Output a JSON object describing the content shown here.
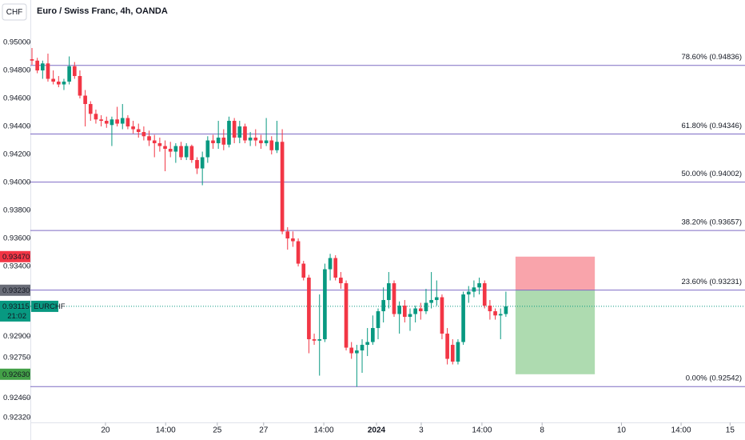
{
  "chart_data": {
    "type": "candlestick",
    "symbol_box": "CHF",
    "title": "Euro / Swiss Franc, 4h, OANDA",
    "up_color": "#089981",
    "down_color": "#f23645",
    "ylim": [
      0.92286,
      0.95303
    ],
    "xlim": [
      -0.3,
      133.9
    ],
    "grid": false,
    "yticks": [
      {
        "value": 0.95,
        "label": "0.95000"
      },
      {
        "value": 0.948,
        "label": "0.94800"
      },
      {
        "value": 0.946,
        "label": "0.94600"
      },
      {
        "value": 0.944,
        "label": "0.94400"
      },
      {
        "value": 0.942,
        "label": "0.94200"
      },
      {
        "value": 0.94,
        "label": "0.94000"
      },
      {
        "value": 0.938,
        "label": "0.93800"
      },
      {
        "value": 0.936,
        "label": "0.93600"
      },
      {
        "value": 0.934,
        "label": "0.93400"
      },
      {
        "value": 0.929,
        "label": "0.92900"
      },
      {
        "value": 0.9275,
        "label": "0.92750"
      },
      {
        "value": 0.9246,
        "label": "0.92460"
      },
      {
        "value": 0.9232,
        "label": "0.92320"
      }
    ],
    "xticks": [
      {
        "value": 13.8,
        "label": "20"
      },
      {
        "value": 25.1,
        "label": "14:00"
      },
      {
        "value": 34.8,
        "label": "25"
      },
      {
        "value": 43.5,
        "label": "27"
      },
      {
        "value": 54.8,
        "label": "14:00"
      },
      {
        "value": 64.7,
        "label": "2024",
        "bold": true
      },
      {
        "value": 73.1,
        "label": "3"
      },
      {
        "value": 84.5,
        "label": "14:00"
      },
      {
        "value": 95.8,
        "label": "8"
      },
      {
        "value": 110.7,
        "label": "10"
      },
      {
        "value": 121.9,
        "label": "14:00"
      },
      {
        "value": 131.1,
        "label": "15"
      }
    ],
    "fib_color": "#7e6bc4",
    "fib_levels": [
      {
        "value": 0.94836,
        "label": "78.60% (0.94836)"
      },
      {
        "value": 0.94346,
        "label": "61.80% (0.94346)"
      },
      {
        "value": 0.94002,
        "label": "50.00% (0.94002)"
      },
      {
        "value": 0.93657,
        "label": "38.20% (0.93657)"
      },
      {
        "value": 0.93231,
        "label": "23.60% (0.93231)"
      },
      {
        "value": 0.92542,
        "label": "0.00% (0.92542)"
      }
    ],
    "position": {
      "x": [
        90.8,
        105.7
      ],
      "stop": 0.9347,
      "entry": 0.9323,
      "target": 0.9263
    },
    "price_labels": [
      {
        "value": 0.9347,
        "label": "0.93470",
        "color": "#f23645"
      },
      {
        "value": 0.9323,
        "label": "0.93230",
        "color": "#6a6d78"
      },
      {
        "value": 0.9263,
        "label": "0.92630",
        "color": "#43a047"
      }
    ],
    "last_price": {
      "value": 0.93115,
      "label": "0.93115",
      "symbol": "EURCHF",
      "countdown": "21:02",
      "color": "#089981"
    },
    "open": [
      0.9488,
      0.9487,
      0.948,
      0.9485,
      0.9474,
      0.9472,
      0.947,
      0.9472,
      0.9483,
      0.9476,
      0.9462,
      0.9456,
      0.9449,
      0.9445,
      0.9444,
      0.9441,
      0.9445,
      0.9442,
      0.9446,
      0.944,
      0.9438,
      0.9436,
      0.9433,
      0.943,
      0.9428,
      0.9426,
      0.9424,
      0.9422,
      0.9426,
      0.9418,
      0.9426,
      0.9416,
      0.941,
      0.9418,
      0.943,
      0.9428,
      0.9432,
      0.9427,
      0.9444,
      0.9432,
      0.944,
      0.943,
      0.9432,
      0.943,
      0.9428,
      0.943,
      0.9423,
      0.9429,
      0.9365,
      0.936,
      0.9358,
      0.9342,
      0.9332,
      0.9288,
      0.9287,
      0.9288,
      0.9338,
      0.9346,
      0.9332,
      0.9328,
      0.9282,
      0.9278,
      0.928,
      0.9284,
      0.9286,
      0.9296,
      0.9308,
      0.9316,
      0.9328,
      0.9306,
      0.9312,
      0.9304,
      0.9306,
      0.931,
      0.9308,
      0.9314,
      0.9316,
      0.9318,
      0.9292,
      0.9284,
      0.9272,
      0.9286,
      0.932,
      0.9322,
      0.9325,
      0.9328,
      0.9312,
      0.9308,
      0.9305,
      0.9306
    ],
    "high": [
      0.9496,
      0.9489,
      0.9487,
      0.9492,
      0.948,
      0.9476,
      0.9474,
      0.949,
      0.9486,
      0.948,
      0.9466,
      0.9458,
      0.9452,
      0.9448,
      0.9447,
      0.9447,
      0.9454,
      0.9456,
      0.9448,
      0.9444,
      0.9442,
      0.944,
      0.9437,
      0.9434,
      0.9432,
      0.943,
      0.9429,
      0.9428,
      0.9429,
      0.9428,
      0.9427,
      0.9418,
      0.9422,
      0.9433,
      0.9434,
      0.9444,
      0.9438,
      0.9447,
      0.9446,
      0.9444,
      0.9442,
      0.9436,
      0.9438,
      0.9434,
      0.9446,
      0.9433,
      0.9444,
      0.9438,
      0.9368,
      0.9365,
      0.936,
      0.9344,
      0.9334,
      0.9292,
      0.932,
      0.9342,
      0.9349,
      0.9348,
      0.9336,
      0.933,
      0.9286,
      0.9284,
      0.9288,
      0.9296,
      0.9305,
      0.931,
      0.9325,
      0.9336,
      0.933,
      0.9315,
      0.9316,
      0.931,
      0.9312,
      0.9314,
      0.9324,
      0.9336,
      0.933,
      0.932,
      0.9296,
      0.9288,
      0.9288,
      0.9322,
      0.9326,
      0.933,
      0.9332,
      0.933,
      0.9316,
      0.931,
      0.931,
      0.9322
    ],
    "low": [
      0.9484,
      0.9478,
      0.9474,
      0.9472,
      0.947,
      0.9468,
      0.9466,
      0.947,
      0.9474,
      0.946,
      0.944,
      0.9444,
      0.9442,
      0.944,
      0.9439,
      0.9426,
      0.944,
      0.9438,
      0.9438,
      0.9435,
      0.9432,
      0.943,
      0.9426,
      0.9418,
      0.9422,
      0.9408,
      0.9418,
      0.9414,
      0.9416,
      0.9416,
      0.9414,
      0.9406,
      0.9398,
      0.9414,
      0.9424,
      0.9424,
      0.9423,
      0.9425,
      0.9428,
      0.9428,
      0.9428,
      0.9426,
      0.9426,
      0.9424,
      0.9426,
      0.942,
      0.9421,
      0.9363,
      0.9352,
      0.9354,
      0.934,
      0.933,
      0.9278,
      0.9284,
      0.9262,
      0.9286,
      0.933,
      0.933,
      0.9324,
      0.928,
      0.9274,
      0.9254,
      0.9264,
      0.9276,
      0.9284,
      0.9288,
      0.93,
      0.931,
      0.9304,
      0.9292,
      0.93,
      0.9294,
      0.93,
      0.9302,
      0.9306,
      0.931,
      0.9312,
      0.9288,
      0.927,
      0.927,
      0.927,
      0.9284,
      0.9314,
      0.9318,
      0.932,
      0.931,
      0.9302,
      0.9302,
      0.9288,
      0.9304
    ],
    "close": [
      0.9487,
      0.948,
      0.9485,
      0.9474,
      0.9472,
      0.947,
      0.9472,
      0.9483,
      0.9476,
      0.9462,
      0.9456,
      0.9449,
      0.9445,
      0.9444,
      0.9442,
      0.9445,
      0.9442,
      0.9446,
      0.944,
      0.9438,
      0.9436,
      0.9433,
      0.943,
      0.9428,
      0.9426,
      0.9424,
      0.9422,
      0.9426,
      0.9418,
      0.9426,
      0.9416,
      0.941,
      0.9418,
      0.943,
      0.9428,
      0.9432,
      0.9427,
      0.9444,
      0.9432,
      0.944,
      0.943,
      0.9432,
      0.943,
      0.9428,
      0.943,
      0.9423,
      0.9429,
      0.9365,
      0.936,
      0.9358,
      0.9342,
      0.9332,
      0.9288,
      0.9287,
      0.9288,
      0.9338,
      0.9346,
      0.9332,
      0.9328,
      0.9282,
      0.9278,
      0.928,
      0.9284,
      0.9286,
      0.9296,
      0.9308,
      0.9316,
      0.9328,
      0.9306,
      0.9312,
      0.9304,
      0.9306,
      0.931,
      0.9308,
      0.9314,
      0.9316,
      0.9318,
      0.9292,
      0.9274,
      0.9272,
      0.9286,
      0.932,
      0.9322,
      0.9325,
      0.9328,
      0.9312,
      0.9308,
      0.9305,
      0.9306,
      0.93115
    ]
  }
}
